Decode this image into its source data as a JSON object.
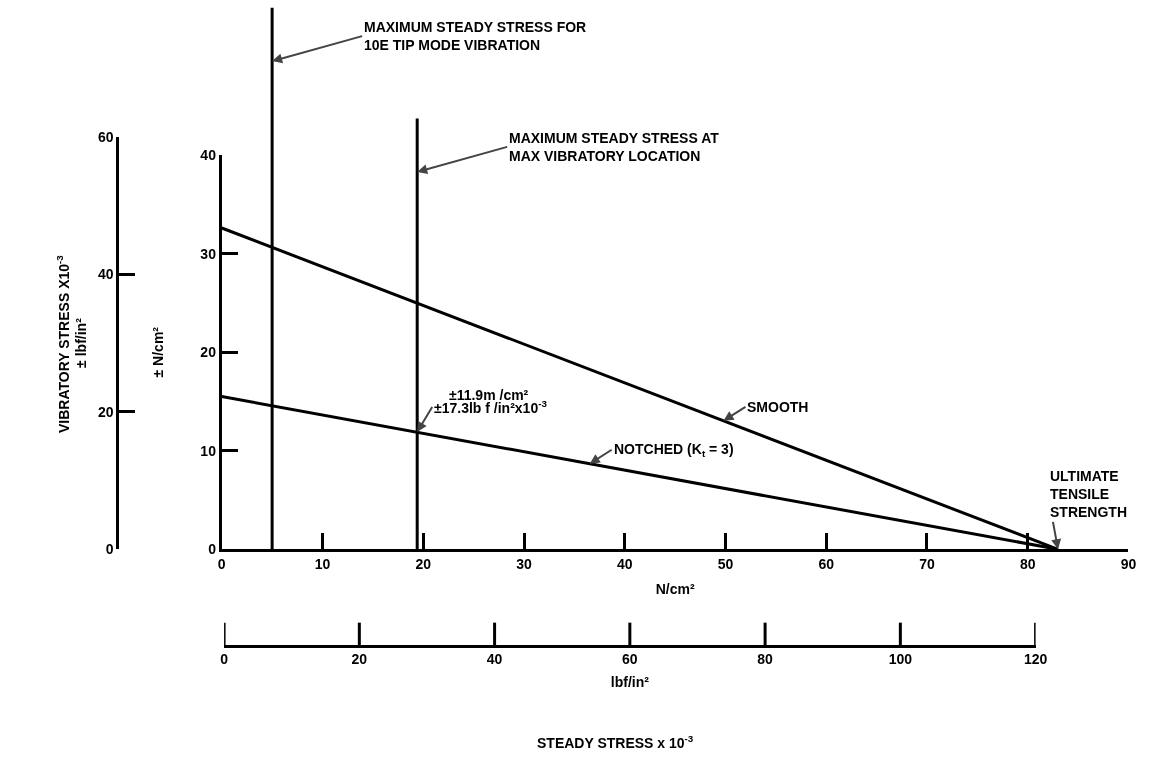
{
  "chart_data": {
    "type": "line",
    "xlabel": "N/cm²",
    "x2label": "lbf/in²",
    "ylabel": "± N/cm²",
    "y2label": "± lbf/in²",
    "xlim": [
      0,
      90
    ],
    "xticks": [
      0,
      10,
      20,
      30,
      40,
      50,
      60,
      70,
      80,
      90
    ],
    "x2lim": [
      0,
      120
    ],
    "x2ticks": [
      0,
      20,
      40,
      60,
      80,
      100,
      120
    ],
    "ylim": [
      0,
      40
    ],
    "yticks": [
      0,
      10,
      20,
      30,
      40
    ],
    "y2lim": [
      0,
      60
    ],
    "y2ticks": [
      0,
      20,
      40,
      60
    ],
    "x": [
      0,
      83
    ],
    "series": [
      {
        "name": "SMOOTH",
        "color": "#000000",
        "values": [
          32.6,
          0
        ]
      },
      {
        "name": "NOTCHED (K$_{t}$ = 3)",
        "color": "#000000",
        "values": [
          15.5,
          0
        ]
      }
    ],
    "ref_lines": [
      {
        "axis": "x",
        "value": 5,
        "label": "MAXIMUM STEADY STRESS FOR 10E TIP MODE VIBRATION",
        "color": "#000000"
      },
      {
        "axis": "x",
        "value": 19.4,
        "label": "MAXIMUM STEADY STRESS AT MAX VIBRATORY LOCATION",
        "color": "#000000"
      }
    ],
    "annotations": [
      "VIBRATORY STRESS X10$^{-3}$",
      "STEADY STRESS x 10$^{-3}$",
      "±11.9m /cm²",
      {
        "text": "±17.3lb f /in²x10$^{-3}$",
        "x": 19.4,
        "y": 11.9
      },
      {
        "text": "ULTIMATE TENSILE STRENGTH",
        "x": 83,
        "y": 0
      }
    ],
    "marker": "none",
    "line_style": "solid",
    "grid": false,
    "legend": false
  }
}
